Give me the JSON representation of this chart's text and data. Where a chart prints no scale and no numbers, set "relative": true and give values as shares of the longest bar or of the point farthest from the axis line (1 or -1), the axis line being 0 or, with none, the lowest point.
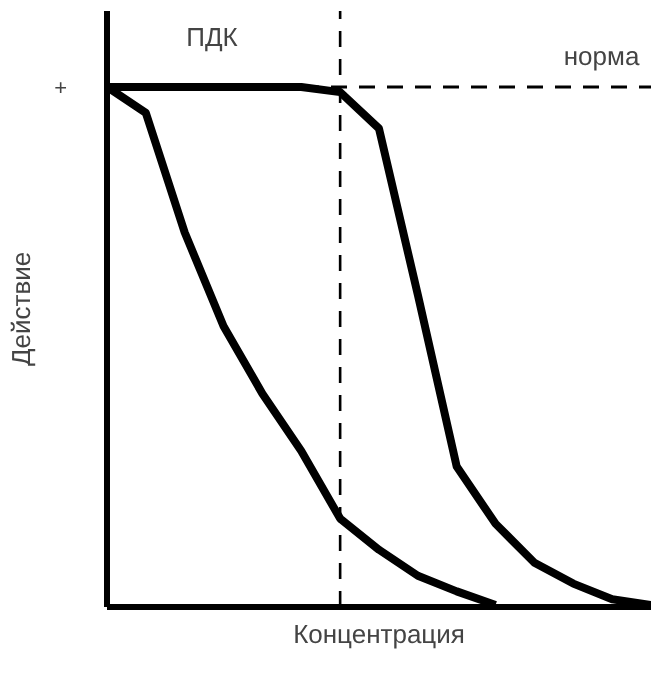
{
  "chart_data": {
    "type": "line",
    "relative": true,
    "xlabel": "Концентрация",
    "ylabel": "Действие",
    "categories": [
      null,
      null,
      null,
      null,
      null,
      null,
      null,
      null,
      null,
      null,
      null,
      null,
      null,
      null,
      null
    ],
    "series": [
      {
        "color": "#000000",
        "values": [
          1,
          0.95,
          0.72,
          0.54,
          0.41,
          0.3,
          0.17,
          0.11,
          0.06,
          0.03,
          0.004,
          null,
          null,
          null,
          null
        ]
      },
      {
        "color": "#000000",
        "values": [
          1,
          1,
          1,
          1,
          1,
          1,
          0.99,
          0.92,
          0.6,
          0.27,
          0.16,
          0.085,
          0.045,
          0.015,
          0.004
        ]
      }
    ],
    "ref_lines": [
      {
        "axis": "y",
        "value": 1,
        "label": "норма",
        "line_style": "dashed",
        "color": "#000000"
      }
    ],
    "annotations": [
      "+",
      "ПДК"
    ],
    "grid": false,
    "marker": "none",
    "line_style": "solid"
  }
}
